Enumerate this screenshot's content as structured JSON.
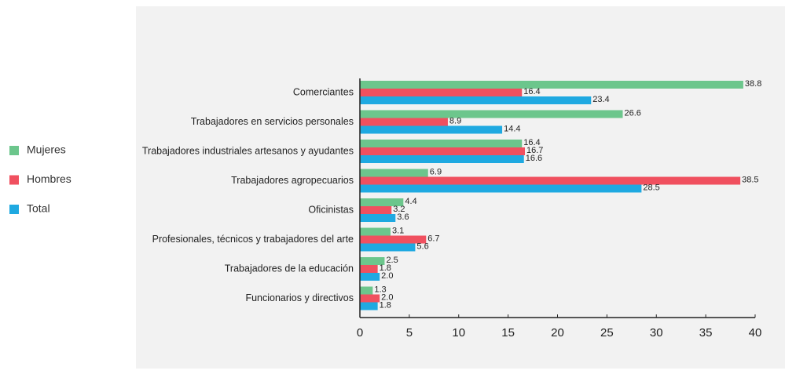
{
  "chart_data": {
    "type": "hbar",
    "categories": [
      "Comerciantes",
      "Trabajadores en servicios personales",
      "Trabajadores industriales artesanos y ayudantes",
      "Trabajadores agropecuarios",
      "Oficinistas",
      "Profesionales, técnicos y trabajadores del arte",
      "Trabajadores de la educación",
      "Funcionarios y directivos"
    ],
    "series": [
      {
        "name": "Mujeres",
        "color": "#6cc68c",
        "values": [
          38.8,
          26.6,
          16.4,
          6.9,
          4.4,
          3.1,
          2.5,
          1.3
        ],
        "value_labels": [
          "38.8",
          "26.6",
          "16.4",
          "6.9",
          "4.4",
          "3.1",
          "2.5",
          "1.3"
        ]
      },
      {
        "name": "Hombres",
        "color": "#f0505f",
        "values": [
          16.4,
          8.9,
          16.7,
          38.5,
          3.2,
          6.7,
          1.8,
          2.0
        ],
        "value_labels": [
          "16.4",
          "8.9",
          "16.7",
          "38.5",
          "3.2",
          "6.7",
          "1.8",
          "2.0"
        ]
      },
      {
        "name": "Total",
        "color": "#1fa9e1",
        "values": [
          23.4,
          14.4,
          16.6,
          28.5,
          3.6,
          5.6,
          2.0,
          1.8
        ],
        "value_labels": [
          "23.4",
          "14.4",
          "16.6",
          "28.5",
          "3.6",
          "5.6",
          "2.0",
          "1.8"
        ]
      }
    ],
    "xlim": [
      0,
      40
    ],
    "xticks": [
      0,
      5,
      10,
      15,
      20,
      25,
      30,
      35,
      40
    ],
    "legend": "left"
  }
}
